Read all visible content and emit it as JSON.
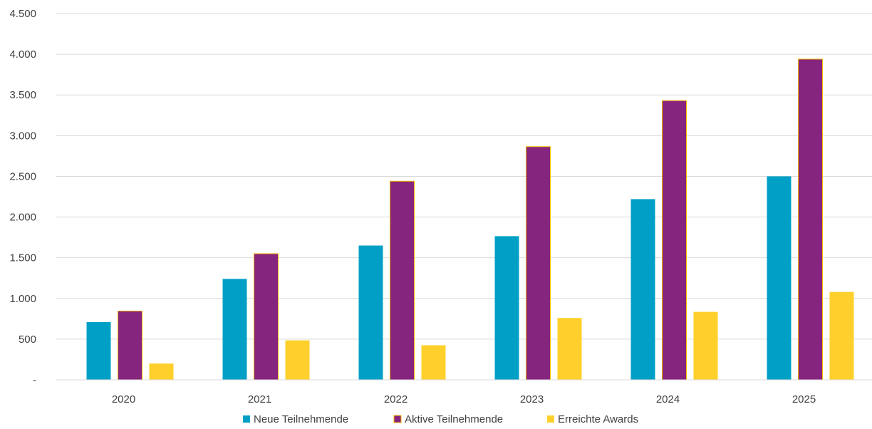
{
  "chart_data": {
    "type": "bar",
    "title": "",
    "xlabel": "",
    "ylabel": "",
    "categories": [
      "2020",
      "2021",
      "2022",
      "2023",
      "2024",
      "2025"
    ],
    "ylim": [
      0,
      4500
    ],
    "yticks": [
      0,
      500,
      1000,
      1500,
      2000,
      2500,
      3000,
      3500,
      4000,
      4500
    ],
    "ytick_labels": [
      "-",
      "500",
      "1.000",
      "1.500",
      "2.000",
      "2.500",
      "3.000",
      "3.500",
      "4.000",
      "4.500"
    ],
    "grid": true,
    "legend_position": "bottom",
    "series": [
      {
        "name": "Neue Teilnehmende",
        "color": "#00a0c6",
        "values": [
          710,
          1240,
          1650,
          1765,
          2220,
          2500
        ]
      },
      {
        "name": "Aktive Teilnehmende",
        "color": "#86257e",
        "outline": "#f5b800",
        "values": [
          845,
          1550,
          2440,
          2865,
          3430,
          3940
        ]
      },
      {
        "name": "Erreichte Awards",
        "color": "#ffd02b",
        "values": [
          200,
          485,
          425,
          760,
          835,
          1080
        ]
      }
    ]
  }
}
